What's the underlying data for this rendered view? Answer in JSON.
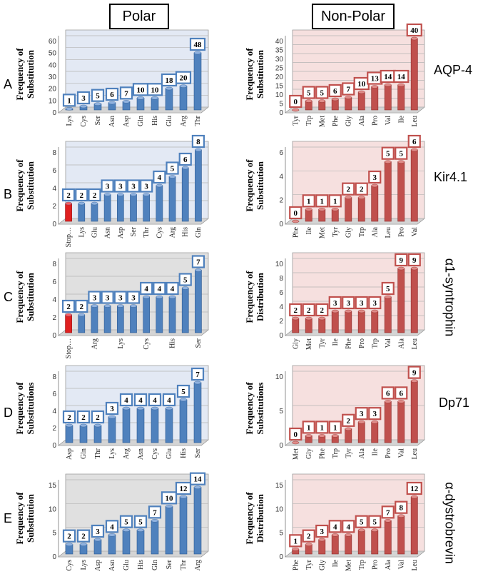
{
  "headers": {
    "polar": "Polar",
    "nonpolar": "Non-Polar"
  },
  "rows": [
    {
      "letter": "A",
      "protein": "AQP-4"
    },
    {
      "letter": "B",
      "protein": "Kir4.1"
    },
    {
      "letter": "C",
      "protein": "α1-syntrophin"
    },
    {
      "letter": "D",
      "protein": "Dp71"
    },
    {
      "letter": "E",
      "protein": "α-dystrobrevin"
    }
  ],
  "colors": {
    "polar_bar": "#4f81bd",
    "polar_bar_dark": "#2d5a93",
    "polar_bg": "#e3e9f4",
    "nonpolar_bar": "#c0504d",
    "nonpolar_bar_dark": "#8e2a28",
    "nonpolar_bg": "#f6e0df",
    "stop_bar": "#e02020",
    "gray_bg": "#e0e0e0"
  },
  "chart_data": [
    {
      "id": "A-polar",
      "type": "bar",
      "ylabel": "Frequency of Substitution",
      "ylim": [
        0,
        60
      ],
      "yticks": [
        0,
        10,
        20,
        30,
        40,
        50,
        60
      ],
      "background": "blue",
      "categories": [
        "Lys",
        "Cys",
        "Ser",
        "Asn",
        "Asp",
        "Gln",
        "His",
        "Glu",
        "Arg",
        "Thr"
      ],
      "values": [
        1,
        3,
        5,
        6,
        7,
        10,
        10,
        18,
        20,
        48
      ]
    },
    {
      "id": "A-nonpolar",
      "type": "bar",
      "ylabel": "Frequency of Substitution",
      "ylim": [
        0,
        40
      ],
      "yticks": [
        0,
        5,
        10,
        15,
        20,
        25,
        30,
        35,
        40
      ],
      "background": "red",
      "categories": [
        "Tyr",
        "Trp",
        "Met",
        "Phe",
        "Gly",
        "Ala",
        "Pro",
        "Val",
        "Ile",
        "Leu"
      ],
      "values": [
        0,
        5,
        5,
        6,
        7,
        10,
        13,
        14,
        14,
        40
      ]
    },
    {
      "id": "B-polar",
      "type": "bar",
      "ylabel": "Frequency of Substitution",
      "ylim": [
        0,
        8
      ],
      "yticks": [
        0,
        2,
        4,
        6,
        8
      ],
      "background": "blue",
      "categories": [
        "Stop…",
        "Lys",
        "Glu",
        "Asn",
        "Asp",
        "Ser",
        "Thr",
        "Cys",
        "Arg",
        "His",
        "Gln"
      ],
      "values": [
        2,
        2,
        2,
        3,
        3,
        3,
        3,
        4,
        5,
        6,
        8
      ],
      "highlight": [
        0
      ]
    },
    {
      "id": "B-nonpolar",
      "type": "bar",
      "ylabel": "Frequency of Substitution",
      "ylim": [
        0,
        6
      ],
      "yticks": [
        0,
        2,
        4,
        6
      ],
      "background": "red",
      "categories": [
        "Phe",
        "Ile",
        "Met",
        "Tyr",
        "Gly",
        "Trp",
        "Ala",
        "Leu",
        "Pro",
        "Val"
      ],
      "values": [
        0,
        1,
        1,
        1,
        2,
        2,
        3,
        5,
        5,
        6
      ]
    },
    {
      "id": "C-polar",
      "type": "bar",
      "ylabel": "Frequency of Substitution",
      "ylim": [
        0,
        8
      ],
      "yticks": [
        0,
        2,
        4,
        6,
        8
      ],
      "background": "gray",
      "categories": [
        "Stop…",
        "",
        "Arg",
        "",
        "Lys",
        "",
        "Cys",
        "",
        "His",
        "",
        "Ser"
      ],
      "values": [
        2,
        2,
        3,
        3,
        3,
        3,
        4,
        4,
        4,
        5,
        7
      ],
      "highlight": [
        0
      ]
    },
    {
      "id": "C-nonpolar",
      "type": "bar",
      "ylabel": "Frequency of Distribution",
      "ylim": [
        0,
        10
      ],
      "yticks": [
        0,
        2,
        4,
        6,
        8,
        10
      ],
      "background": "red",
      "categories": [
        "Gly",
        "Met",
        "Tyr",
        "Ile",
        "Phe",
        "Pro",
        "Trp",
        "Val",
        "Ala",
        "Leu"
      ],
      "values": [
        2,
        2,
        2,
        3,
        3,
        3,
        3,
        5,
        9,
        9
      ]
    },
    {
      "id": "D-polar",
      "type": "bar",
      "ylabel": "Frequency of Substitutions",
      "ylim": [
        0,
        8
      ],
      "yticks": [
        0,
        2,
        4,
        6,
        8
      ],
      "background": "blue",
      "categories": [
        "Asp",
        "Gln",
        "Thr",
        "Lys",
        "Arg",
        "Asn",
        "Cys",
        "Glu",
        "His",
        "Ser"
      ],
      "values": [
        2,
        2,
        2,
        3,
        4,
        4,
        4,
        4,
        5,
        7
      ]
    },
    {
      "id": "D-nonpolar",
      "type": "bar",
      "ylabel": "Frequency of Substitutions",
      "ylim": [
        0,
        10
      ],
      "yticks": [
        0,
        5,
        10
      ],
      "background": "red",
      "categories": [
        "Met",
        "Gly",
        "Phe",
        "Trp",
        "Tyr",
        "Ala",
        "Ile",
        "Pro",
        "Val",
        "Leu"
      ],
      "values": [
        0,
        1,
        1,
        1,
        2,
        3,
        3,
        6,
        6,
        9
      ]
    },
    {
      "id": "E-polar",
      "type": "bar",
      "ylabel": "Frequency of Substitution",
      "ylim": [
        0,
        15
      ],
      "yticks": [
        0,
        5,
        10,
        15
      ],
      "background": "gray",
      "categories": [
        "Cys",
        "Lys",
        "Asp",
        "Asn",
        "Glu",
        "His",
        "Gln",
        "Ser",
        "Thr",
        "Arg"
      ],
      "values": [
        2,
        2,
        3,
        4,
        5,
        5,
        7,
        10,
        12,
        14
      ]
    },
    {
      "id": "E-nonpolar",
      "type": "bar",
      "ylabel": "Frequency of Distribution",
      "ylim": [
        0,
        15
      ],
      "yticks": [
        0,
        5,
        10,
        15
      ],
      "background": "red",
      "categories": [
        "Phe",
        "Tyr",
        "Gly",
        "Ile",
        "Met",
        "Trp",
        "Pro",
        "Ala",
        "Val",
        "Leu"
      ],
      "values": [
        1,
        2,
        3,
        4,
        4,
        5,
        5,
        7,
        8,
        12
      ]
    }
  ]
}
